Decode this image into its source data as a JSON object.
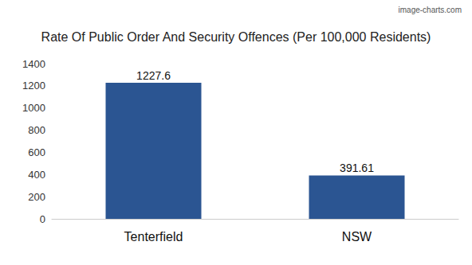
{
  "chart_data": {
    "type": "bar",
    "title": "Rate Of Public Order And Security Offences (Per 100,000 Residents)",
    "annotations": [
      "image-charts.com"
    ],
    "categories": [
      "Tenterfield",
      "NSW"
    ],
    "values": [
      1227.6,
      391.61
    ],
    "color": "#2b5592",
    "ylim": [
      0,
      1400
    ],
    "yticks": [
      0,
      200,
      400,
      600,
      800,
      1000,
      1200,
      1400
    ],
    "grid": false,
    "data_labels": true
  }
}
